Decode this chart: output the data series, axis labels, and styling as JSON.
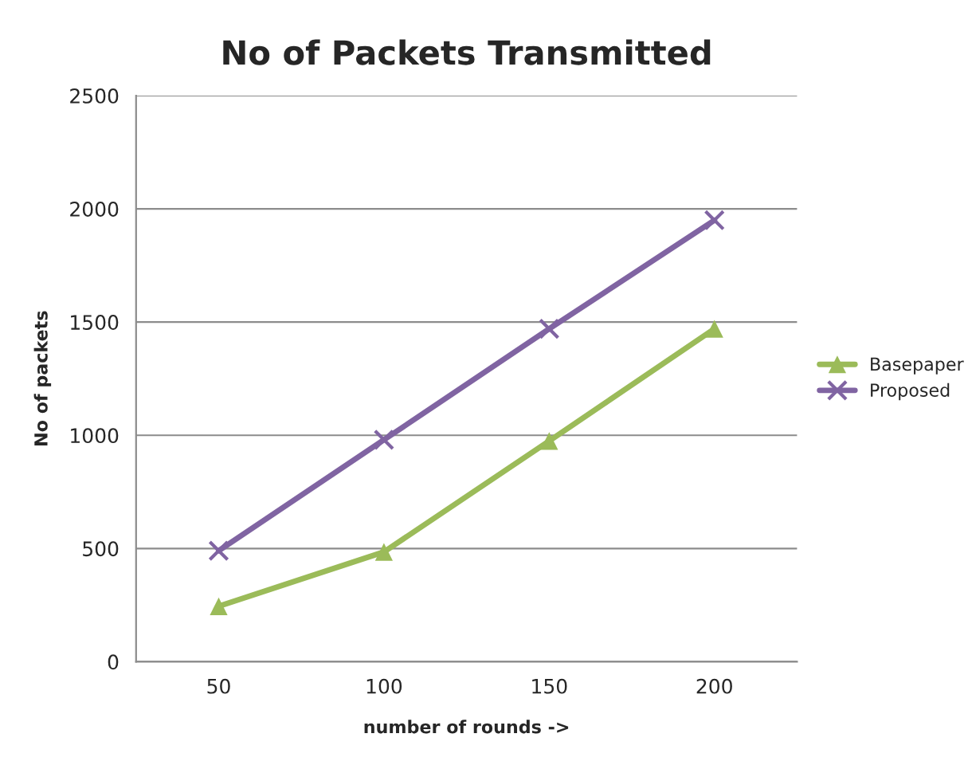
{
  "chart_data": {
    "type": "line",
    "title": "No of Packets Transmitted",
    "xlabel": "number of rounds ->",
    "ylabel": "No of packets",
    "categories": [
      "50",
      "100",
      "150",
      "200"
    ],
    "series": [
      {
        "name": "Basepaper",
        "color": "#9bbb59",
        "marker": "triangle",
        "values": [
          245,
          485,
          975,
          1470
        ]
      },
      {
        "name": "Proposed",
        "color": "#8064a2",
        "marker": "cross",
        "values": [
          490,
          980,
          1470,
          1950
        ]
      }
    ],
    "ylim": [
      0,
      2500
    ],
    "yticks": [
      0,
      500,
      1000,
      1500,
      2000,
      2500
    ],
    "grid": "y",
    "legend": "right",
    "line_style": "solid"
  }
}
